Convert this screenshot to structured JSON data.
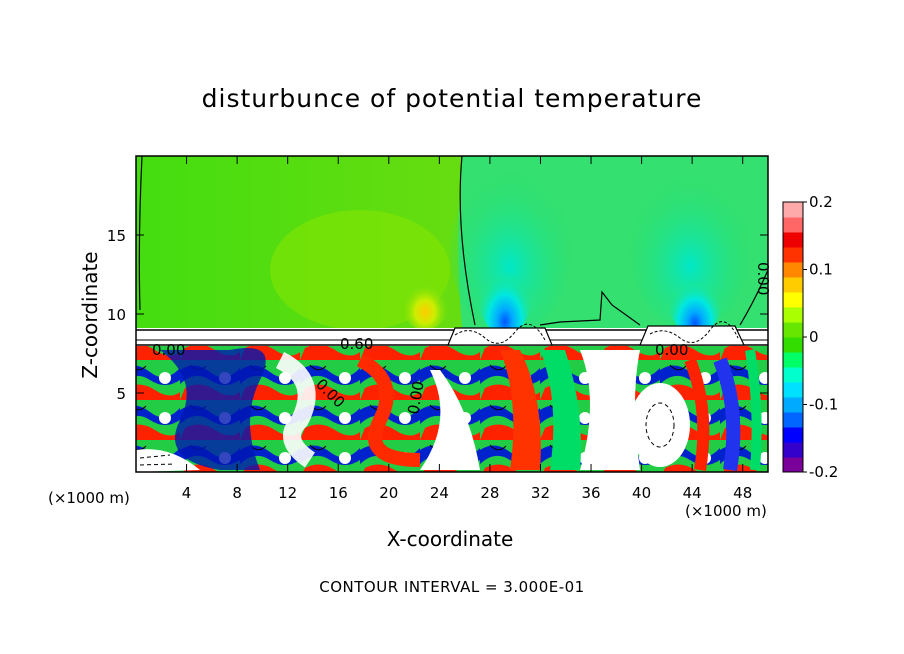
{
  "chart_data": {
    "type": "heatmap",
    "title": "disturbunce of potential temperature",
    "xlabel": "X-coordinate",
    "ylabel": "Z-coordinate",
    "x_unit": "(×1000 m)",
    "x_ticks": [
      "4",
      "8",
      "12",
      "16",
      "20",
      "24",
      "28",
      "32",
      "36",
      "40",
      "44",
      "48"
    ],
    "x_tick_values": [
      4,
      8,
      12,
      16,
      20,
      24,
      28,
      32,
      36,
      40,
      44,
      48
    ],
    "y_ticks": [
      "5",
      "10",
      "15"
    ],
    "y_tick_values": [
      5,
      10,
      15
    ],
    "xlim": [
      0,
      50
    ],
    "ylim": [
      0,
      20
    ],
    "colorbar": {
      "ticks": [
        "0.2",
        "0.1",
        "0",
        "-0.1",
        "-0.2"
      ],
      "tick_values": [
        0.2,
        0.1,
        0,
        -0.1,
        -0.2
      ],
      "range": [
        -0.2,
        0.2
      ],
      "colors": [
        "#7a0099",
        "#3300cc",
        "#0000ff",
        "#0066ff",
        "#00aaff",
        "#00e0ff",
        "#00ffcc",
        "#00ff66",
        "#33dd00",
        "#66e600",
        "#aaff00",
        "#ffff00",
        "#ffcc00",
        "#ff8800",
        "#ff3300",
        "#ee0000",
        "#ff6666",
        "#ffaaaa"
      ]
    },
    "contour_labels": [
      "0.00",
      "0.60",
      "0.00",
      "0.00",
      "0.00",
      "0.00"
    ],
    "annotation": "CONTOUR INTERVAL = 3.000E-01"
  }
}
